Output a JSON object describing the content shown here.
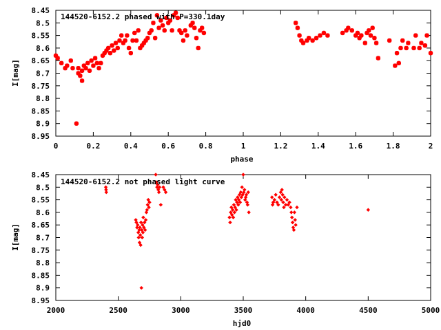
{
  "chart_data": [
    {
      "type": "scatter",
      "title": "144520-6152.2 phased with P=330.1day",
      "xlabel": "phase",
      "ylabel": "I[mag]",
      "xlim": [
        0,
        2
      ],
      "ylim": [
        8.45,
        8.95
      ],
      "y_inverted": true,
      "x_ticks": [
        "0",
        "0.2",
        "0.4",
        "0.6",
        "0.8",
        "1",
        "1.2",
        "1.4",
        "1.6",
        "1.8",
        "2"
      ],
      "y_ticks": [
        "8.45",
        "8.5",
        "8.55",
        "8.6",
        "8.65",
        "8.7",
        "8.75",
        "8.8",
        "8.85",
        "8.9",
        "8.95"
      ],
      "grid": false,
      "marker": "star",
      "color": "#ff0000",
      "series": [
        {
          "points": [
            [
              0.0,
              8.63
            ],
            [
              0.01,
              8.64
            ],
            [
              0.03,
              8.66
            ],
            [
              0.05,
              8.68
            ],
            [
              0.06,
              8.67
            ],
            [
              0.08,
              8.65
            ],
            [
              0.09,
              8.68
            ],
            [
              0.11,
              8.9
            ],
            [
              0.12,
              8.68
            ],
            [
              0.12,
              8.7
            ],
            [
              0.13,
              8.71
            ],
            [
              0.14,
              8.69
            ],
            [
              0.14,
              8.73
            ],
            [
              0.15,
              8.67
            ],
            [
              0.16,
              8.68
            ],
            [
              0.17,
              8.66
            ],
            [
              0.18,
              8.69
            ],
            [
              0.19,
              8.65
            ],
            [
              0.2,
              8.67
            ],
            [
              0.21,
              8.64
            ],
            [
              0.22,
              8.66
            ],
            [
              0.23,
              8.68
            ],
            [
              0.24,
              8.66
            ],
            [
              0.25,
              8.63
            ],
            [
              0.26,
              8.62
            ],
            [
              0.27,
              8.61
            ],
            [
              0.28,
              8.6
            ],
            [
              0.29,
              8.62
            ],
            [
              0.3,
              8.59
            ],
            [
              0.31,
              8.61
            ],
            [
              0.32,
              8.58
            ],
            [
              0.33,
              8.6
            ],
            [
              0.34,
              8.57
            ],
            [
              0.35,
              8.55
            ],
            [
              0.36,
              8.58
            ],
            [
              0.37,
              8.57
            ],
            [
              0.38,
              8.55
            ],
            [
              0.39,
              8.6
            ],
            [
              0.4,
              8.62
            ],
            [
              0.41,
              8.57
            ],
            [
              0.42,
              8.54
            ],
            [
              0.43,
              8.57
            ],
            [
              0.44,
              8.53
            ],
            [
              0.45,
              8.6
            ],
            [
              0.46,
              8.59
            ],
            [
              0.47,
              8.58
            ],
            [
              0.48,
              8.57
            ],
            [
              0.49,
              8.56
            ],
            [
              0.5,
              8.54
            ],
            [
              0.51,
              8.53
            ],
            [
              0.52,
              8.5
            ],
            [
              0.53,
              8.56
            ],
            [
              0.54,
              8.47
            ],
            [
              0.55,
              8.52
            ],
            [
              0.56,
              8.49
            ],
            [
              0.57,
              8.51
            ],
            [
              0.58,
              8.53
            ],
            [
              0.59,
              8.48
            ],
            [
              0.6,
              8.5
            ],
            [
              0.61,
              8.49
            ],
            [
              0.62,
              8.53
            ],
            [
              0.63,
              8.47
            ],
            [
              0.64,
              8.46
            ],
            [
              0.65,
              8.48
            ],
            [
              0.66,
              8.53
            ],
            [
              0.67,
              8.54
            ],
            [
              0.68,
              8.57
            ],
            [
              0.69,
              8.53
            ],
            [
              0.7,
              8.55
            ],
            [
              0.72,
              8.51
            ],
            [
              0.73,
              8.5
            ],
            [
              0.74,
              8.52
            ],
            [
              0.75,
              8.56
            ],
            [
              0.76,
              8.6
            ],
            [
              0.77,
              8.53
            ],
            [
              0.78,
              8.52
            ],
            [
              0.79,
              8.54
            ],
            [
              1.28,
              8.5
            ],
            [
              1.29,
              8.52
            ],
            [
              1.3,
              8.55
            ],
            [
              1.31,
              8.57
            ],
            [
              1.32,
              8.58
            ],
            [
              1.34,
              8.57
            ],
            [
              1.35,
              8.56
            ],
            [
              1.37,
              8.57
            ],
            [
              1.39,
              8.56
            ],
            [
              1.41,
              8.55
            ],
            [
              1.43,
              8.54
            ],
            [
              1.45,
              8.55
            ],
            [
              1.53,
              8.54
            ],
            [
              1.55,
              8.53
            ],
            [
              1.56,
              8.52
            ],
            [
              1.58,
              8.53
            ],
            [
              1.6,
              8.55
            ],
            [
              1.61,
              8.54
            ],
            [
              1.62,
              8.56
            ],
            [
              1.63,
              8.55
            ],
            [
              1.65,
              8.58
            ],
            [
              1.66,
              8.54
            ],
            [
              1.67,
              8.53
            ],
            [
              1.68,
              8.55
            ],
            [
              1.69,
              8.52
            ],
            [
              1.7,
              8.56
            ],
            [
              1.71,
              8.58
            ],
            [
              1.72,
              8.64
            ],
            [
              1.78,
              8.57
            ],
            [
              1.81,
              8.67
            ],
            [
              1.82,
              8.62
            ],
            [
              1.83,
              8.66
            ],
            [
              1.84,
              8.6
            ],
            [
              1.85,
              8.57
            ],
            [
              1.87,
              8.6
            ],
            [
              1.88,
              8.58
            ],
            [
              1.91,
              8.6
            ],
            [
              1.92,
              8.55
            ],
            [
              1.94,
              8.6
            ],
            [
              1.95,
              8.58
            ],
            [
              1.97,
              8.59
            ],
            [
              1.98,
              8.55
            ],
            [
              2.0,
              8.62
            ]
          ]
        }
      ]
    },
    {
      "type": "scatter",
      "title": "144520-6152.2 not phased light curve",
      "xlabel": "hjd0",
      "ylabel": "I[mag]",
      "xlim": [
        2000,
        5000
      ],
      "ylim": [
        8.45,
        8.95
      ],
      "y_inverted": true,
      "x_ticks": [
        "2000",
        "2500",
        "3000",
        "3500",
        "4000",
        "4500",
        "5000"
      ],
      "y_ticks": [
        "8.45",
        "8.5",
        "8.55",
        "8.6",
        "8.65",
        "8.7",
        "8.75",
        "8.8",
        "8.85",
        "8.9",
        "8.95"
      ],
      "grid": false,
      "marker": "diamond",
      "color": "#ff0000",
      "series": [
        {
          "points": [
            [
              2400,
              8.5
            ],
            [
              2402,
              8.51
            ],
            [
              2404,
              8.52
            ],
            [
              2640,
              8.63
            ],
            [
              2645,
              8.64
            ],
            [
              2650,
              8.66
            ],
            [
              2655,
              8.65
            ],
            [
              2660,
              8.68
            ],
            [
              2663,
              8.7
            ],
            [
              2667,
              8.67
            ],
            [
              2670,
              8.72
            ],
            [
              2673,
              8.66
            ],
            [
              2676,
              8.69
            ],
            [
              2679,
              8.73
            ],
            [
              2682,
              8.64
            ],
            [
              2685,
              8.9
            ],
            [
              2688,
              8.67
            ],
            [
              2691,
              8.7
            ],
            [
              2694,
              8.65
            ],
            [
              2697,
              8.68
            ],
            [
              2700,
              8.62
            ],
            [
              2705,
              8.66
            ],
            [
              2710,
              8.64
            ],
            [
              2715,
              8.67
            ],
            [
              2720,
              8.63
            ],
            [
              2725,
              8.6
            ],
            [
              2730,
              8.59
            ],
            [
              2735,
              8.57
            ],
            [
              2740,
              8.55
            ],
            [
              2745,
              8.58
            ],
            [
              2750,
              8.56
            ],
            [
              2800,
              8.45
            ],
            [
              2805,
              8.48
            ],
            [
              2810,
              8.5
            ],
            [
              2815,
              8.49
            ],
            [
              2820,
              8.51
            ],
            [
              2825,
              8.52
            ],
            [
              2830,
              8.5
            ],
            [
              2840,
              8.57
            ],
            [
              2860,
              8.5
            ],
            [
              2870,
              8.51
            ],
            [
              2880,
              8.52
            ],
            [
              3390,
              8.62
            ],
            [
              3395,
              8.64
            ],
            [
              3400,
              8.6
            ],
            [
              3405,
              8.58
            ],
            [
              3410,
              8.61
            ],
            [
              3415,
              8.59
            ],
            [
              3420,
              8.62
            ],
            [
              3425,
              8.57
            ],
            [
              3430,
              8.6
            ],
            [
              3435,
              8.58
            ],
            [
              3440,
              8.55
            ],
            [
              3445,
              8.59
            ],
            [
              3450,
              8.56
            ],
            [
              3455,
              8.54
            ],
            [
              3460,
              8.57
            ],
            [
              3465,
              8.55
            ],
            [
              3470,
              8.53
            ],
            [
              3475,
              8.56
            ],
            [
              3480,
              8.52
            ],
            [
              3485,
              8.54
            ],
            [
              3490,
              8.5
            ],
            [
              3495,
              8.53
            ],
            [
              3500,
              8.45
            ],
            [
              3505,
              8.52
            ],
            [
              3510,
              8.51
            ],
            [
              3515,
              8.55
            ],
            [
              3520,
              8.54
            ],
            [
              3525,
              8.53
            ],
            [
              3530,
              8.56
            ],
            [
              3535,
              8.57
            ],
            [
              3540,
              8.52
            ],
            [
              3545,
              8.6
            ],
            [
              3730,
              8.54
            ],
            [
              3735,
              8.57
            ],
            [
              3740,
              8.56
            ],
            [
              3750,
              8.55
            ],
            [
              3760,
              8.53
            ],
            [
              3770,
              8.56
            ],
            [
              3780,
              8.57
            ],
            [
              3790,
              8.54
            ],
            [
              3800,
              8.52
            ],
            [
              3805,
              8.55
            ],
            [
              3810,
              8.51
            ],
            [
              3815,
              8.53
            ],
            [
              3820,
              8.56
            ],
            [
              3825,
              8.58
            ],
            [
              3830,
              8.54
            ],
            [
              3840,
              8.57
            ],
            [
              3850,
              8.55
            ],
            [
              3860,
              8.57
            ],
            [
              3870,
              8.56
            ],
            [
              3880,
              8.58
            ],
            [
              3885,
              8.6
            ],
            [
              3890,
              8.62
            ],
            [
              3895,
              8.64
            ],
            [
              3900,
              8.66
            ],
            [
              3905,
              8.67
            ],
            [
              3910,
              8.6
            ],
            [
              3915,
              8.63
            ],
            [
              3920,
              8.65
            ],
            [
              3930,
              8.58
            ],
            [
              4500,
              8.59
            ]
          ]
        }
      ]
    }
  ]
}
